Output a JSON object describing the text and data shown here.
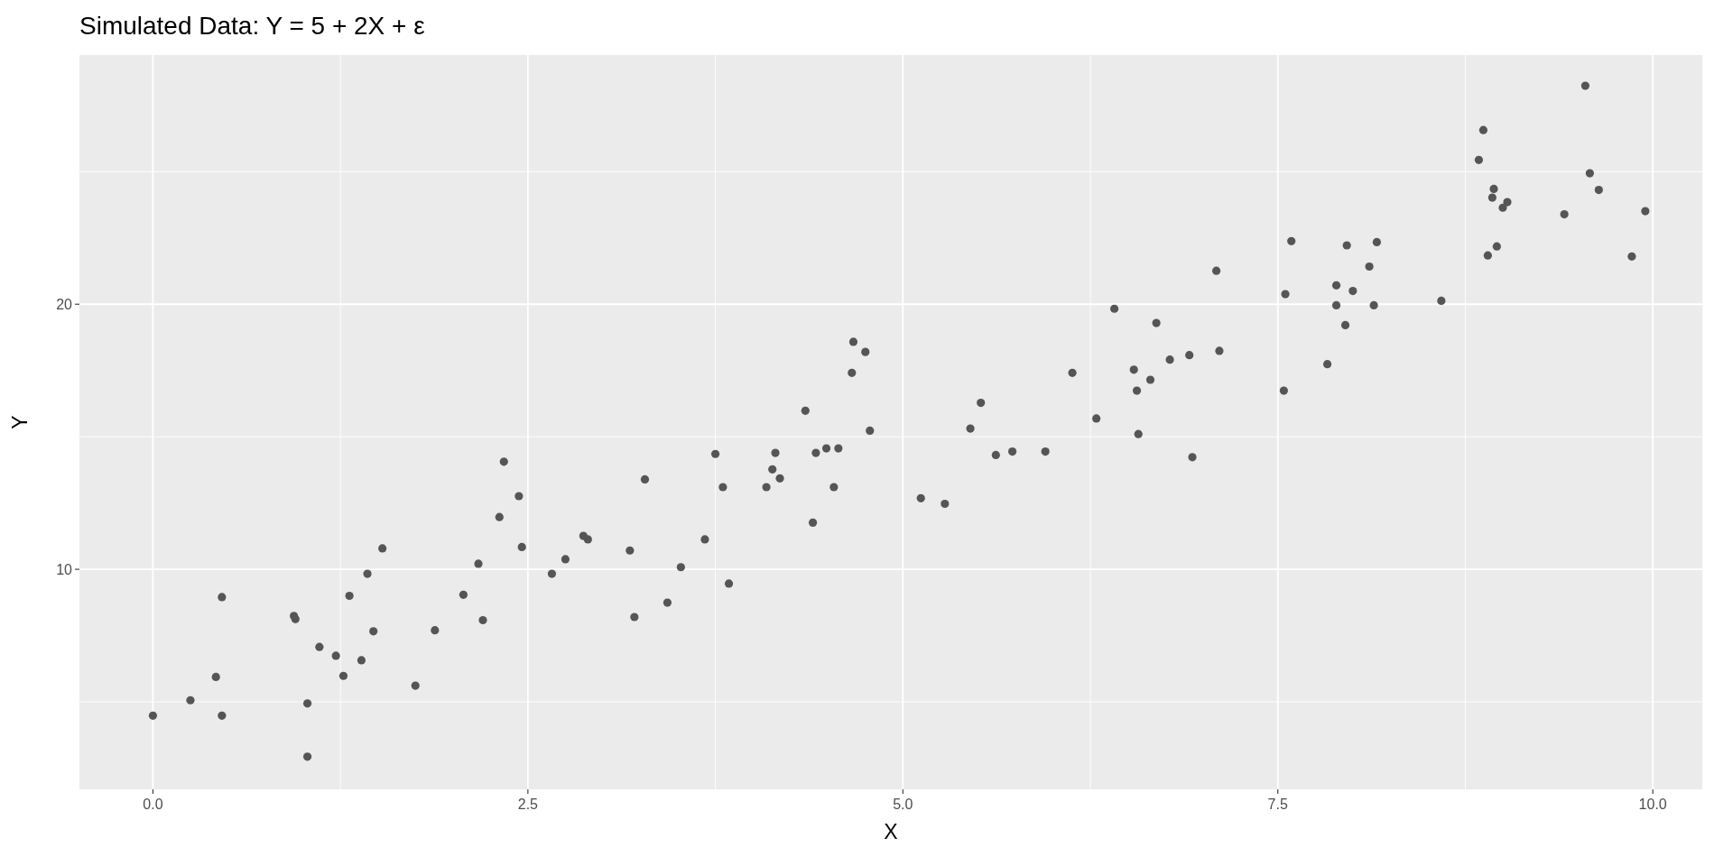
{
  "chart_data": {
    "type": "scatter",
    "title": "Simulated Data: Y = 5 + 2X + ε",
    "xlabel": "X",
    "ylabel": "Y",
    "color": "#555555",
    "marker": "circle",
    "grid": true,
    "xlim": [
      -0.49,
      10.33
    ],
    "ylim": [
      1.7,
      29.4
    ],
    "xticks": [
      {
        "value": 0,
        "label": "0.0"
      },
      {
        "value": 1.25,
        "label": null
      },
      {
        "value": 2.5,
        "label": "2.5"
      },
      {
        "value": 3.75,
        "label": null
      },
      {
        "value": 5,
        "label": "5.0"
      },
      {
        "value": 6.25,
        "label": null
      },
      {
        "value": 7.5,
        "label": "7.5"
      },
      {
        "value": 8.75,
        "label": null
      },
      {
        "value": 10,
        "label": "10.0"
      }
    ],
    "yticks": [
      {
        "value": 5,
        "label": null
      },
      10,
      {
        "value": 15,
        "label": null
      },
      20,
      {
        "value": 25,
        "label": null
      }
    ],
    "x": [
      0.0,
      0.25,
      0.42,
      0.46,
      0.46,
      0.94,
      0.95,
      1.03,
      1.03,
      1.11,
      1.22,
      1.27,
      1.31,
      1.39,
      1.43,
      1.47,
      1.53,
      1.75,
      1.88,
      2.07,
      2.17,
      2.2,
      2.31,
      2.34,
      2.44,
      2.46,
      2.66,
      2.75,
      2.87,
      2.9,
      3.18,
      3.21,
      3.28,
      3.43,
      3.52,
      3.68,
      3.75,
      3.8,
      3.84,
      4.09,
      4.13,
      4.15,
      4.18,
      4.35,
      4.4,
      4.42,
      4.49,
      4.54,
      4.57,
      4.66,
      4.67,
      4.75,
      4.78,
      5.12,
      5.28,
      5.45,
      5.52,
      5.62,
      5.73,
      5.95,
      6.13,
      6.29,
      6.41,
      6.54,
      6.56,
      6.57,
      6.65,
      6.69,
      6.78,
      6.91,
      6.93,
      7.09,
      7.11,
      7.54,
      7.55,
      7.59,
      7.83,
      7.89,
      7.89,
      7.95,
      7.96,
      8.0,
      8.11,
      8.14,
      8.16,
      8.59,
      8.84,
      8.87,
      8.9,
      8.93,
      8.94,
      8.96,
      9.0,
      9.03,
      9.41,
      9.55,
      9.58,
      9.64,
      9.86,
      9.95
    ],
    "values": [
      4.48,
      5.06,
      5.94,
      8.95,
      4.48,
      8.24,
      8.12,
      4.94,
      2.93,
      7.07,
      6.74,
      5.98,
      9.0,
      6.57,
      9.83,
      7.66,
      10.79,
      5.61,
      7.7,
      9.04,
      10.21,
      8.08,
      11.97,
      14.06,
      12.76,
      10.84,
      9.83,
      10.38,
      11.26,
      11.13,
      10.71,
      8.2,
      13.39,
      8.74,
      10.08,
      11.13,
      14.35,
      13.1,
      9.46,
      13.1,
      13.77,
      14.39,
      13.43,
      15.98,
      11.76,
      14.39,
      14.56,
      13.1,
      14.56,
      17.41,
      18.58,
      18.2,
      15.23,
      12.68,
      12.47,
      15.31,
      16.28,
      14.31,
      14.44,
      14.44,
      17.41,
      15.69,
      19.83,
      17.53,
      16.74,
      15.1,
      17.15,
      19.29,
      17.91,
      18.08,
      14.23,
      21.26,
      18.24,
      16.74,
      20.38,
      22.38,
      17.74,
      20.71,
      19.96,
      19.21,
      22.22,
      20.5,
      21.42,
      19.96,
      22.34,
      20.13,
      25.44,
      26.57,
      21.84,
      24.02,
      24.35,
      22.18,
      23.64,
      23.85,
      23.39,
      28.24,
      24.94,
      24.31,
      21.8,
      23.51
    ]
  }
}
